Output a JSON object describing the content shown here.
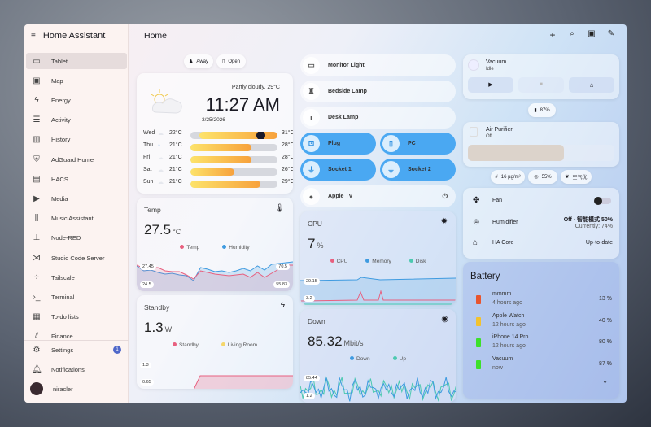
{
  "app": {
    "title": "Home Assistant",
    "page": "Home"
  },
  "sidebar": {
    "items": [
      {
        "label": "Tablet",
        "icon": "tablet-icon"
      },
      {
        "label": "Map",
        "icon": "map-icon"
      },
      {
        "label": "Energy",
        "icon": "lightning-icon"
      },
      {
        "label": "Activity",
        "icon": "list-icon"
      },
      {
        "label": "History",
        "icon": "chart-icon"
      },
      {
        "label": "AdGuard Home",
        "icon": "shield-icon"
      },
      {
        "label": "HACS",
        "icon": "store-icon"
      },
      {
        "label": "Media",
        "icon": "media-icon"
      },
      {
        "label": "Music Assistant",
        "icon": "library-icon"
      },
      {
        "label": "Node-RED",
        "icon": "sitemap-icon"
      },
      {
        "label": "Studio Code Server",
        "icon": "vscode-icon"
      },
      {
        "label": "Tailscale",
        "icon": "tailscale-icon"
      },
      {
        "label": "Terminal",
        "icon": "terminal-icon"
      },
      {
        "label": "To-do lists",
        "icon": "clipboard-icon"
      },
      {
        "label": "Finance",
        "icon": "finance-icon"
      }
    ],
    "settings": "Settings",
    "settings_badge": "1",
    "notifications": "Notifications",
    "user": "niracler"
  },
  "chips": {
    "away": "Away",
    "open": "Open",
    "battery": "87%",
    "pm": "16 µg/m³",
    "humidity": "55%",
    "air": "空气优"
  },
  "weather": {
    "condition": "Partly cloudy, 29°C",
    "time": "11:27 AM",
    "date": "3/25/2026",
    "forecast": [
      {
        "day": "Wed",
        "low": "22°C",
        "high": "31°C",
        "from": 0.1,
        "to": 1.0
      },
      {
        "day": "Thu",
        "low": "21°C",
        "high": "28°C",
        "from": 0,
        "to": 0.7
      },
      {
        "day": "Fri",
        "low": "21°C",
        "high": "28°C",
        "from": 0,
        "to": 0.7
      },
      {
        "day": "Sat",
        "low": "21°C",
        "high": "26°C",
        "from": 0,
        "to": 0.5
      },
      {
        "day": "Sun",
        "low": "21°C",
        "high": "29°C",
        "from": 0,
        "to": 0.8
      }
    ]
  },
  "temp": {
    "title": "Temp",
    "value": "27.5",
    "unit": "°C",
    "legend": [
      "Temp",
      "Humidity"
    ],
    "top_left": "27.45",
    "bottom_left": "24.5",
    "top_right": "70.5",
    "bottom_right": "55.83",
    "temp_series": [
      5,
      9,
      8,
      8,
      12,
      13,
      13,
      17,
      22,
      12,
      14,
      16,
      17,
      18,
      17,
      16,
      20,
      14,
      20,
      15,
      10,
      5,
      5
    ],
    "hum_series": [
      6,
      12,
      11,
      14,
      16,
      15,
      17,
      18,
      24,
      8,
      10,
      13,
      12,
      14,
      12,
      9,
      12,
      6,
      11,
      4,
      3,
      2,
      1
    ]
  },
  "standby": {
    "title": "Standby",
    "value": "1.3",
    "unit": "W",
    "legend": [
      "Standby",
      "Living Room"
    ],
    "top": "1.3",
    "bottom": "0.65"
  },
  "devices": [
    {
      "label": "Monitor Light",
      "icon": "monitor-icon",
      "on": false
    },
    {
      "label": "Bedside Lamp",
      "icon": "lamp-icon",
      "on": false
    },
    {
      "label": "Desk Lamp",
      "icon": "desk-lamp-icon",
      "on": false
    },
    {
      "label": "Plug",
      "icon": "outlet-icon",
      "on": true
    },
    {
      "label": "PC",
      "icon": "pc-icon",
      "on": true
    },
    {
      "label": "Socket 1",
      "icon": "plug-icon",
      "on": true
    },
    {
      "label": "Socket 2",
      "icon": "plug-icon",
      "on": true
    },
    {
      "label": "Apple TV",
      "icon": "apple-icon",
      "on": false
    }
  ],
  "cpu": {
    "title": "CPU",
    "value": "7",
    "unit": "%",
    "legend": [
      "CPU",
      "Memory",
      "Disk"
    ],
    "top": "29.15",
    "bottom": "3.2"
  },
  "down": {
    "title": "Down",
    "value": "85.32",
    "unit": "Mbit/s",
    "legend": [
      "Down",
      "Up"
    ],
    "top": "85.44",
    "bottom": "1.2"
  },
  "vacuum": {
    "name": "Vacuum",
    "state": "Idle"
  },
  "purifier": {
    "name": "Air Purifier",
    "state": "Off"
  },
  "entities": [
    {
      "name": "Fan",
      "value": ""
    },
    {
      "name": "Humidifier",
      "value": "Off - 智能模式 50%",
      "sub": "Currently: 74%"
    },
    {
      "name": "HA Core",
      "value": "Up-to-date"
    }
  ],
  "battery": {
    "title": "Battery",
    "items": [
      {
        "name": "mmmm",
        "time": "4 hours ago",
        "value": "13 %",
        "color": "#e8552e"
      },
      {
        "name": "Apple Watch",
        "time": "12 hours ago",
        "value": "40 %",
        "color": "#f2c22e"
      },
      {
        "name": "iPhone 14 Pro",
        "time": "12 hours ago",
        "value": "80 %",
        "color": "#3de02a"
      },
      {
        "name": "Vacuum",
        "time": "now",
        "value": "87 %",
        "color": "#3de02a"
      }
    ]
  },
  "colors": {
    "accent": "#4aa8f2",
    "temp": "#e8607f",
    "humidity": "#3f9be0",
    "living": "#f5d66a",
    "disk": "#4cc9b0"
  }
}
